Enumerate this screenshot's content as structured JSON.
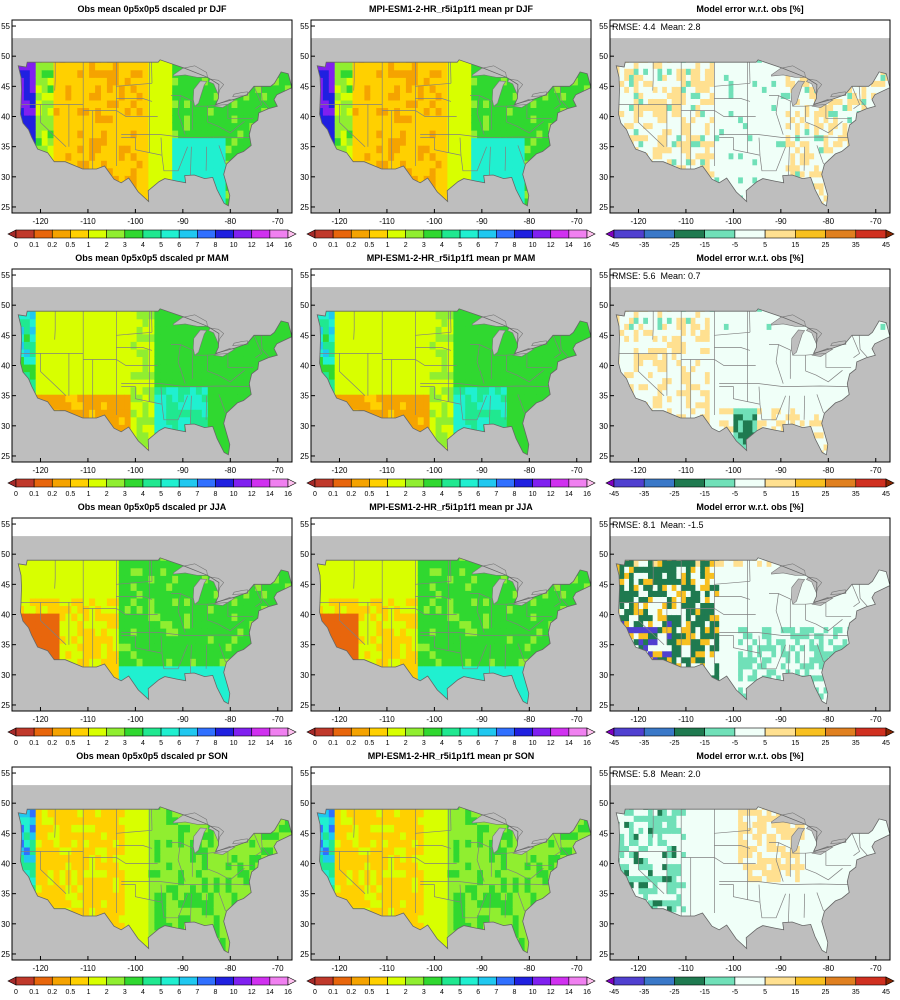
{
  "chart_data": {
    "type": "heatmap",
    "variable": "pr",
    "x_ticks": [
      -120,
      -110,
      -100,
      -90,
      -80,
      -70
    ],
    "y_ticks": [
      25,
      30,
      35,
      40,
      45,
      50,
      55
    ],
    "seasons": [
      "DJF",
      "MAM",
      "JJA",
      "SON"
    ],
    "rows": [
      {
        "season": "DJF",
        "obs_title": "Obs mean 0p5x0p5 dscaled pr DJF",
        "model_title": "MPI-ESM1-2-HR_r5i1p1f1 mean pr DJF",
        "error_title": "Model error w.r.t. obs [%]",
        "stats": "RMSE: 4.4  Mean: 2.8",
        "rmse": 4.4,
        "mean": 2.8
      },
      {
        "season": "MAM",
        "obs_title": "Obs mean 0p5x0p5 dscaled pr MAM",
        "model_title": "MPI-ESM1-2-HR_r5i1p1f1 mean pr MAM",
        "error_title": "Model error w.r.t. obs [%]",
        "stats": "RMSE: 5.6  Mean: 0.7",
        "rmse": 5.6,
        "mean": 0.7
      },
      {
        "season": "JJA",
        "obs_title": "Obs mean 0p5x0p5 dscaled pr JJA",
        "model_title": "MPI-ESM1-2-HR_r5i1p1f1 mean pr JJA",
        "error_title": "Model error w.r.t. obs [%]",
        "stats": "RMSE: 8.1  Mean: -1.5",
        "rmse": 8.1,
        "mean": -1.5
      },
      {
        "season": "SON",
        "obs_title": "Obs mean 0p5x0p5 dscaled pr SON",
        "model_title": "MPI-ESM1-2-HR_r5i1p1f1 mean pr SON",
        "error_title": "Model error w.r.t. obs [%]",
        "stats": "RMSE: 5.8  Mean: 2.0",
        "rmse": 5.8,
        "mean": 2.0
      }
    ],
    "precip_colorbar": {
      "labels": [
        "0",
        "0.1",
        "0.2",
        "0.5",
        "1",
        "2",
        "3",
        "4",
        "5",
        "6",
        "7",
        "8",
        "10",
        "12",
        "14",
        "16"
      ],
      "colors": [
        "#a52a2a",
        "#c0392b",
        "#e8660c",
        "#f5a300",
        "#ffd000",
        "#d8ff00",
        "#90ee30",
        "#30d830",
        "#20e890",
        "#20f0d0",
        "#20c8f0",
        "#3070ff",
        "#2020e0",
        "#8020f0",
        "#d030f0",
        "#f080f0",
        "#ffc0f0"
      ]
    },
    "error_colorbar": {
      "labels": [
        "-45",
        "-35",
        "-25",
        "-15",
        "-5",
        "5",
        "15",
        "25",
        "35",
        "45"
      ],
      "colors": [
        "#8000c0",
        "#5040d0",
        "#3a78c8",
        "#1f7a50",
        "#70e0b8",
        "#f0fff8",
        "#ffe090",
        "#f8c020",
        "#e08020",
        "#d03020",
        "#8b2500"
      ]
    }
  }
}
